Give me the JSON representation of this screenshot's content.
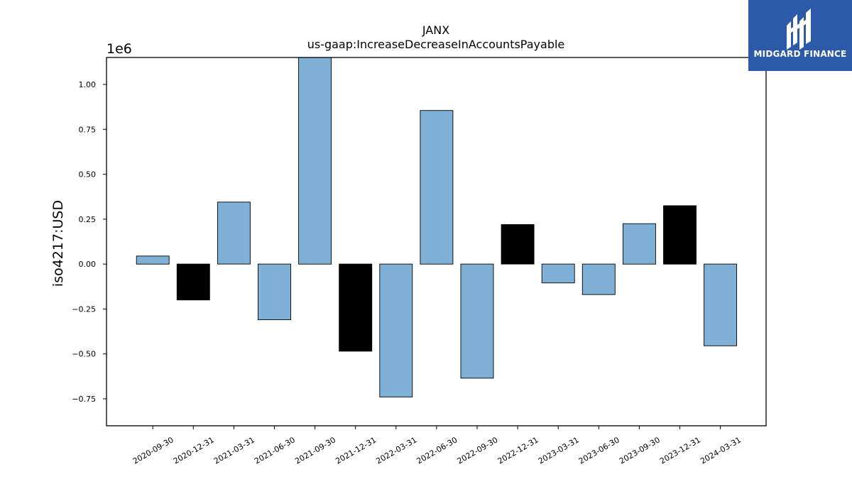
{
  "chart_data": {
    "type": "bar",
    "title": "JANX",
    "subtitle": "us-gaap:IncreaseDecreaseInAccountsPayable",
    "xlabel": "",
    "ylabel": "iso4217:USD",
    "y_offset_label": "1e6",
    "ylim": [
      -0.9,
      1.15
    ],
    "y_ticks": [
      -0.75,
      -0.5,
      -0.25,
      0.0,
      0.25,
      0.5,
      0.75,
      1.0
    ],
    "y_tick_labels": [
      "−0.75",
      "−0.50",
      "−0.25",
      "0.00",
      "0.25",
      "0.50",
      "0.75",
      "1.00"
    ],
    "categories": [
      "2020-09-30",
      "2020-12-31",
      "2021-03-31",
      "2021-06-30",
      "2021-09-30",
      "2021-12-31",
      "2022-03-31",
      "2022-06-30",
      "2022-09-30",
      "2022-12-31",
      "2023-03-31",
      "2023-06-30",
      "2023-09-30",
      "2023-12-31",
      "2024-03-31"
    ],
    "values": [
      0.045,
      -0.2,
      0.345,
      -0.31,
      1.16,
      -0.485,
      -0.74,
      0.855,
      -0.635,
      0.22,
      -0.105,
      -0.17,
      0.225,
      0.325,
      -0.455
    ],
    "bar_colors": [
      "#7fb0d5",
      "#000000",
      "#7fb0d5",
      "#7fb0d5",
      "#7fb0d5",
      "#000000",
      "#7fb0d5",
      "#7fb0d5",
      "#7fb0d5",
      "#000000",
      "#7fb0d5",
      "#7fb0d5",
      "#7fb0d5",
      "#000000",
      "#7fb0d5"
    ],
    "grid": false,
    "legend": "none"
  },
  "logo": {
    "text": "MIDGARD FINANCE",
    "background": "#2d5aa8",
    "icon": "midgard-logo-icon"
  }
}
